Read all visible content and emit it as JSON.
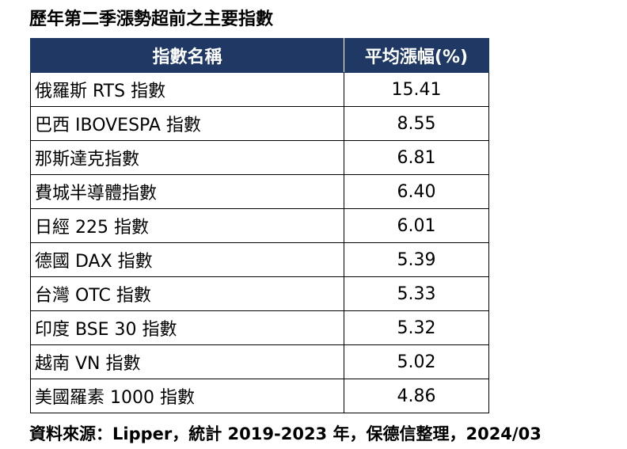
{
  "title": "歷年第二季漲勢超前之主要指數",
  "table": {
    "headers": {
      "name": "指數名稱",
      "value": "平均漲幅(%)"
    },
    "rows": [
      {
        "name": "俄羅斯 RTS 指數",
        "value": "15.41"
      },
      {
        "name": "巴西 IBOVESPA 指數",
        "value": "8.55"
      },
      {
        "name": "那斯達克指數",
        "value": "6.81"
      },
      {
        "name": "費城半導體指數",
        "value": "6.40"
      },
      {
        "name": "日經 225 指數",
        "value": "6.01"
      },
      {
        "name": "德國 DAX 指數",
        "value": "5.39"
      },
      {
        "name": "台灣 OTC 指數",
        "value": "5.33"
      },
      {
        "name": "印度 BSE 30 指數",
        "value": "5.32"
      },
      {
        "name": "越南 VN 指數",
        "value": "5.02"
      },
      {
        "name": "美國羅素 1000 指數",
        "value": "4.86"
      }
    ]
  },
  "source": "資料來源：Lipper，統計 2019-2023 年，保德信整理，2024/03",
  "colors": {
    "header_background": "#1f3864",
    "header_text": "#ffffff"
  }
}
